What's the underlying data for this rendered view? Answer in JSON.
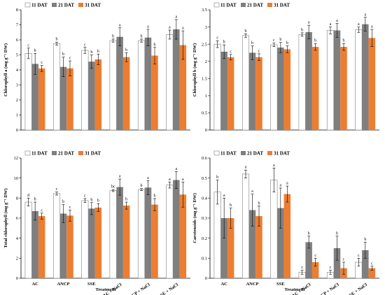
{
  "figure": {
    "legend": [
      "11 DAT",
      "21 DAT",
      "31 DAT"
    ],
    "colors": [
      "#ffffff",
      "#7f7f7f",
      "#ed7d31"
    ],
    "categories": [
      "AC",
      "ANCP",
      "SSE",
      "AC + NaCl",
      "ANCP + NaCl",
      "SSE + NaCl"
    ],
    "xlabel": "Treatment"
  },
  "chart_data": [
    {
      "type": "bar",
      "ylabel": "Chlorophyll a (mg g⁻¹ DW)",
      "ylim": [
        0,
        8
      ],
      "yticks": [
        "0",
        "1",
        "2",
        "3",
        "4",
        "5",
        "6",
        "7",
        "8"
      ],
      "categories": [
        "AC",
        "ANCP",
        "SSE",
        "AC + NaCl",
        "ANCP + NaCl",
        "SSE + NaCl"
      ],
      "series": [
        {
          "name": "11 DAT",
          "values": [
            5.1,
            5.75,
            5.3,
            5.95,
            5.95,
            6.35
          ],
          "errors": [
            0.35,
            0.1,
            0.2,
            0.1,
            0.1,
            0.3
          ],
          "labels": [
            "c",
            "b",
            "c",
            "b",
            "b",
            "a"
          ]
        },
        {
          "name": "21 DAT",
          "values": [
            4.4,
            4.2,
            4.55,
            6.2,
            6.15,
            6.7
          ],
          "errors": [
            0.7,
            0.65,
            0.45,
            0.6,
            0.55,
            0.65
          ],
          "labels": [
            "b",
            "b",
            "b",
            "a",
            "a",
            "a"
          ]
        },
        {
          "name": "31 DAT",
          "values": [
            4.1,
            4.1,
            4.7,
            4.85,
            4.95,
            5.65
          ],
          "errors": [
            0.2,
            0.5,
            0.35,
            0.3,
            0.55,
            0.95
          ],
          "labels": [
            "c",
            "c",
            "b",
            "b",
            "b",
            "a"
          ]
        }
      ]
    },
    {
      "type": "bar",
      "ylabel": "Chlorophyll b (mg g⁻¹ DW)",
      "ylim": [
        0,
        3.5
      ],
      "yticks": [
        "0",
        "0.5",
        "1",
        "1.5",
        "2",
        "2.5",
        "3",
        "3.5"
      ],
      "categories": [
        "AC",
        "ANCP",
        "SSE",
        "AC + NaCl",
        "ANCP + NaCl",
        "SSE + NaCl"
      ],
      "series": [
        {
          "name": "11 DAT",
          "values": [
            2.5,
            2.75,
            2.48,
            2.78,
            2.9,
            2.92
          ],
          "errors": [
            0.1,
            0.05,
            0.05,
            0.05,
            0.1,
            0.08
          ],
          "labels": [
            "c",
            "b",
            "c",
            "b",
            "a",
            "a"
          ]
        },
        {
          "name": "21 DAT",
          "values": [
            2.28,
            2.25,
            2.4,
            2.85,
            2.9,
            3.08
          ],
          "errors": [
            0.2,
            0.2,
            0.15,
            0.2,
            0.2,
            0.2
          ],
          "labels": [
            "b",
            "b",
            "b",
            "a",
            "a",
            "a"
          ]
        },
        {
          "name": "31 DAT",
          "values": [
            2.12,
            2.12,
            2.35,
            2.42,
            2.42,
            2.68
          ],
          "errors": [
            0.08,
            0.1,
            0.1,
            0.1,
            0.1,
            0.25
          ],
          "labels": [
            "c",
            "c",
            "b",
            "b",
            "b",
            "a"
          ]
        }
      ]
    },
    {
      "type": "bar",
      "ylabel": "Total chlorophyll (mg g⁻¹ DW)",
      "ylim": [
        0,
        12
      ],
      "yticks": [
        "0",
        "2",
        "4",
        "6",
        "8",
        "10",
        "12"
      ],
      "categories": [
        "AC",
        "ANCP",
        "SSE",
        "AC + NaCl",
        "ANCP + NaCl",
        "SSE + NaCl"
      ],
      "series": [
        {
          "name": "11 DAT",
          "values": [
            7.6,
            8.45,
            7.75,
            8.75,
            8.85,
            9.3
          ],
          "errors": [
            0.4,
            0.15,
            0.2,
            0.1,
            0.1,
            0.3
          ],
          "labels": [
            "d",
            "c",
            "c",
            "bc",
            "b",
            "a"
          ]
        },
        {
          "name": "21 DAT",
          "values": [
            6.7,
            6.45,
            6.95,
            9.1,
            9.05,
            9.8
          ],
          "errors": [
            0.9,
            0.9,
            0.6,
            0.8,
            0.7,
            0.85
          ],
          "labels": [
            "b",
            "b",
            "b",
            "a",
            "a",
            "a"
          ]
        },
        {
          "name": "31 DAT",
          "values": [
            6.2,
            6.25,
            7.05,
            7.25,
            7.35,
            8.35
          ],
          "errors": [
            0.3,
            0.55,
            0.4,
            0.35,
            0.6,
            1.25
          ],
          "labels": [
            "c",
            "c",
            "b",
            "b",
            "b",
            "a"
          ]
        }
      ]
    },
    {
      "type": "bar",
      "ylabel": "Carotenoids (mg g⁻¹ DW)",
      "ylim": [
        0,
        0.6
      ],
      "yticks": [
        "0",
        "0.1",
        "0.2",
        "0.3",
        "0.4",
        "0.5",
        "0.6"
      ],
      "categories": [
        "AC",
        "ANCP",
        "SSE",
        "AC + NaCl",
        "ANCP + NaCl",
        "SSE + NaCl"
      ],
      "series": [
        {
          "name": "11 DAT",
          "values": [
            0.43,
            0.52,
            0.49,
            0.03,
            0.03,
            0.08
          ],
          "errors": [
            0.06,
            0.02,
            0.06,
            0.01,
            0.01,
            0.02
          ],
          "labels": [
            "b",
            "a",
            "a",
            "c",
            "c",
            "c"
          ]
        },
        {
          "name": "21 DAT",
          "values": [
            0.3,
            0.34,
            0.35,
            0.18,
            0.15,
            0.14
          ],
          "errors": [
            0.1,
            0.08,
            0.1,
            0.03,
            0.06,
            0.04
          ],
          "labels": [
            "a",
            "a",
            "a",
            "b",
            "b",
            "b"
          ]
        },
        {
          "name": "31 DAT",
          "values": [
            0.3,
            0.31,
            0.42,
            0.08,
            0.05,
            0.05
          ],
          "errors": [
            0.05,
            0.05,
            0.04,
            0.02,
            0.03,
            0.01
          ],
          "labels": [
            "b",
            "b",
            "a",
            "c",
            "c",
            "c"
          ]
        }
      ]
    }
  ]
}
